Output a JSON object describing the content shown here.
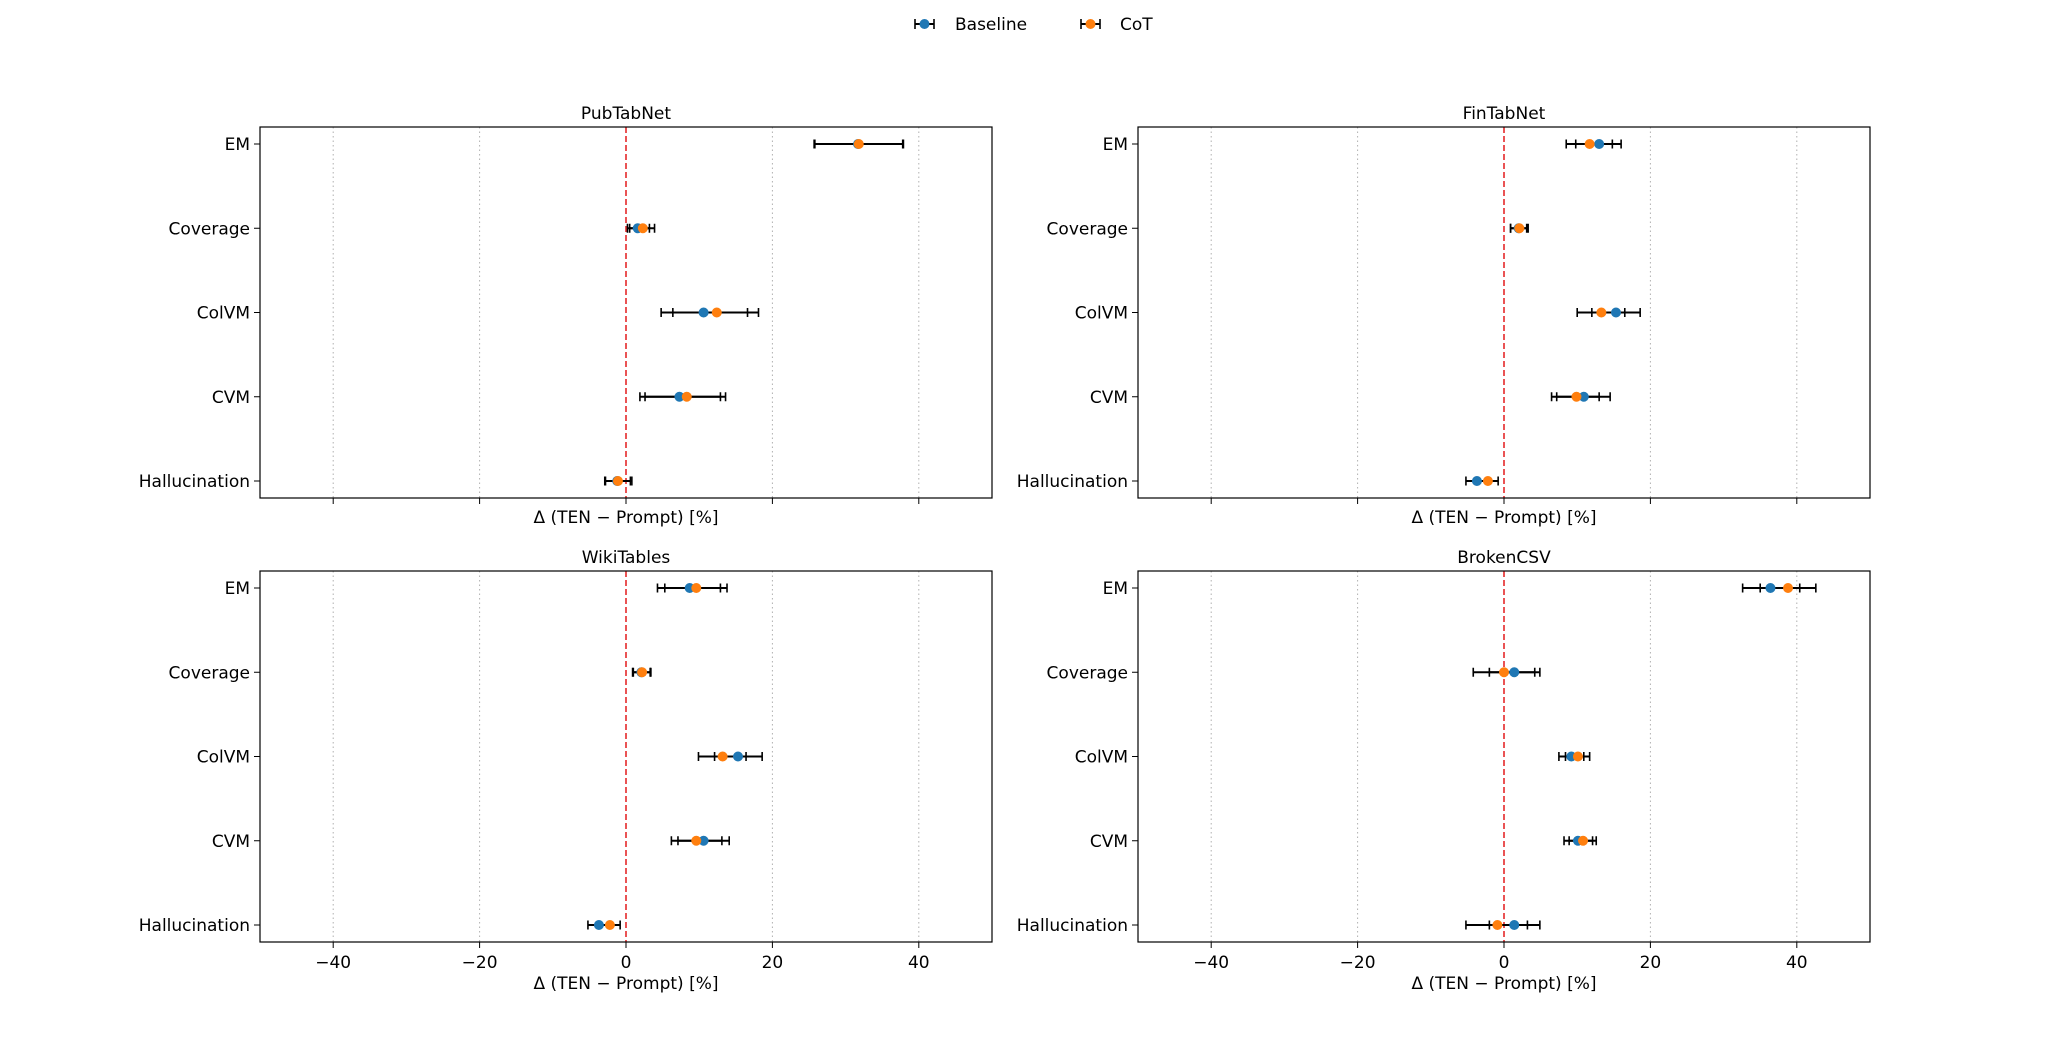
{
  "legend": {
    "baseline_label": "Baseline",
    "cot_label": "CoT"
  },
  "colors": {
    "baseline": "#1f77b4",
    "cot": "#ff7f0e",
    "zero_line": "#e41a1c",
    "grid": "#b0b0b0",
    "errorbar": "#000000"
  },
  "chart_data": [
    {
      "type": "scatter",
      "title": "PubTabNet",
      "xlabel": "Δ (TEN − Prompt) [%]",
      "categories": [
        "EM",
        "Coverage",
        "ColVM",
        "CVM",
        "Hallucination"
      ],
      "xlim": [
        -50,
        50
      ],
      "xticks": [
        -40,
        -20,
        0,
        20,
        40
      ],
      "show_xtick_labels": false,
      "grid": true,
      "series": [
        {
          "name": "Baseline",
          "values": [
            31.7,
            1.6,
            10.6,
            7.3,
            -1.2
          ],
          "ci_low": [
            25.7,
            0.2,
            4.8,
            1.9,
            -2.9
          ],
          "ci_high": [
            37.8,
            3.2,
            16.6,
            12.9,
            0.6
          ]
        },
        {
          "name": "CoT",
          "values": [
            31.8,
            2.3,
            12.4,
            8.3,
            -1.1
          ],
          "ci_low": [
            25.8,
            0.5,
            6.4,
            2.6,
            -2.8
          ],
          "ci_high": [
            37.9,
            3.9,
            18.1,
            13.6,
            0.8
          ]
        }
      ]
    },
    {
      "type": "scatter",
      "title": "FinTabNet",
      "xlabel": "Δ (TEN − Prompt) [%]",
      "categories": [
        "EM",
        "Coverage",
        "ColVM",
        "CVM",
        "Hallucination"
      ],
      "xlim": [
        -50,
        50
      ],
      "xticks": [
        -40,
        -20,
        0,
        20,
        40
      ],
      "show_xtick_labels": false,
      "grid": true,
      "series": [
        {
          "name": "Baseline",
          "values": [
            13.0,
            2.0,
            15.3,
            10.9,
            -3.7
          ],
          "ci_low": [
            9.8,
            0.9,
            12.0,
            7.2,
            -5.2
          ],
          "ci_high": [
            16.0,
            3.1,
            18.6,
            14.5,
            -2.2
          ]
        },
        {
          "name": "CoT",
          "values": [
            11.7,
            2.1,
            13.3,
            9.9,
            -2.2
          ],
          "ci_low": [
            8.5,
            0.9,
            10.0,
            6.5,
            -3.5
          ],
          "ci_high": [
            14.8,
            3.3,
            16.5,
            13.0,
            -0.8
          ]
        }
      ]
    },
    {
      "type": "scatter",
      "title": "WikiTables",
      "xlabel": "Δ (TEN − Prompt) [%]",
      "categories": [
        "EM",
        "Coverage",
        "ColVM",
        "CVM",
        "Hallucination"
      ],
      "xlim": [
        -50,
        50
      ],
      "xticks": [
        -40,
        -20,
        0,
        20,
        40
      ],
      "show_xtick_labels": true,
      "grid": true,
      "series": [
        {
          "name": "Baseline",
          "values": [
            8.7,
            2.1,
            15.3,
            10.6,
            -3.7
          ],
          "ci_low": [
            4.3,
            0.9,
            12.1,
            7.1,
            -5.2
          ],
          "ci_high": [
            12.9,
            3.3,
            18.6,
            14.1,
            -2.2
          ]
        },
        {
          "name": "CoT",
          "values": [
            9.6,
            2.2,
            13.2,
            9.6,
            -2.2
          ],
          "ci_low": [
            5.3,
            1.0,
            9.9,
            6.2,
            -3.7
          ],
          "ci_high": [
            13.8,
            3.4,
            16.4,
            13.1,
            -0.8
          ]
        }
      ]
    },
    {
      "type": "scatter",
      "title": "BrokenCSV",
      "xlabel": "Δ (TEN − Prompt) [%]",
      "categories": [
        "EM",
        "Coverage",
        "ColVM",
        "CVM",
        "Hallucination"
      ],
      "xlim": [
        -50,
        50
      ],
      "xticks": [
        -40,
        -20,
        0,
        20,
        40
      ],
      "show_xtick_labels": true,
      "grid": true,
      "series": [
        {
          "name": "Baseline",
          "values": [
            36.4,
            1.4,
            9.2,
            10.1,
            1.4
          ],
          "ci_low": [
            32.6,
            -2.0,
            7.5,
            8.2,
            -2.0
          ],
          "ci_high": [
            40.4,
            4.9,
            10.9,
            12.1,
            4.9
          ]
        },
        {
          "name": "CoT",
          "values": [
            38.8,
            0.0,
            10.1,
            10.8,
            -0.9
          ],
          "ci_low": [
            35.0,
            -4.2,
            8.4,
            8.9,
            -5.2
          ],
          "ci_high": [
            42.6,
            4.2,
            11.7,
            12.6,
            3.2
          ]
        }
      ]
    }
  ]
}
